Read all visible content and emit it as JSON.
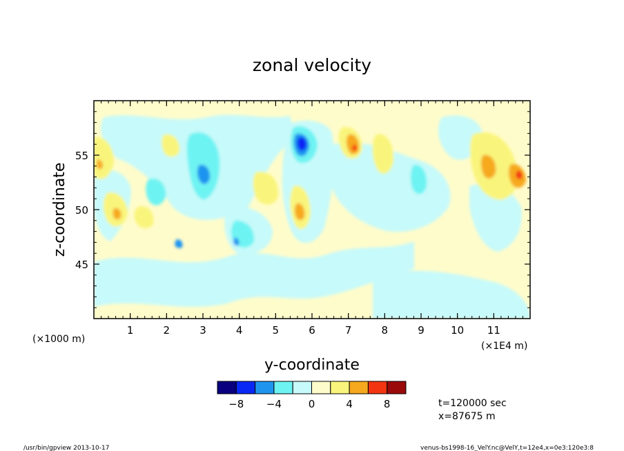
{
  "chart_data": {
    "type": "heatmap",
    "title": "zonal velocity",
    "xlabel": "y-coordinate",
    "ylabel": "z-coordinate",
    "x_range": [
      0,
      120000
    ],
    "y_range": [
      40000,
      60000
    ],
    "x_ticks": [
      {
        "value": 1,
        "label": "1"
      },
      {
        "value": 2,
        "label": "2"
      },
      {
        "value": 3,
        "label": "3"
      },
      {
        "value": 4,
        "label": "4"
      },
      {
        "value": 5,
        "label": "5"
      },
      {
        "value": 6,
        "label": "6"
      },
      {
        "value": 7,
        "label": "7"
      },
      {
        "value": 8,
        "label": "8"
      },
      {
        "value": 9,
        "label": "9"
      },
      {
        "value": 10,
        "label": "10"
      },
      {
        "value": 11,
        "label": "11"
      }
    ],
    "y_ticks": [
      {
        "value": 45,
        "label": "45"
      },
      {
        "value": 50,
        "label": "50"
      },
      {
        "value": 55,
        "label": "55"
      }
    ],
    "x_scale_note": "(×1E4 m)",
    "y_scale_note": "(×1000 m)",
    "colorbar": {
      "boundaries": [
        -10,
        -8,
        -6,
        -4,
        -2,
        0,
        2,
        4,
        6,
        8,
        10
      ],
      "colors": [
        "#08007e",
        "#0a28f5",
        "#1e94ef",
        "#6ef3f3",
        "#c7fafa",
        "#fffccb",
        "#f9f57c",
        "#f6a91e",
        "#f33512",
        "#9b0a0a"
      ],
      "tick_labels": [
        {
          "value": -8,
          "label": "−8"
        },
        {
          "value": -4,
          "label": "−4"
        },
        {
          "value": 0,
          "label": "0"
        },
        {
          "value": 4,
          "label": "4"
        },
        {
          "value": 8,
          "label": "8"
        }
      ]
    },
    "anomalies": [
      {
        "x": 5.7,
        "y": 55.8,
        "value": -9
      },
      {
        "x": 3.0,
        "y": 53.0,
        "value": -6
      },
      {
        "x": 7.1,
        "y": 55.5,
        "value": 7
      },
      {
        "x": 11.6,
        "y": 53.3,
        "value": 8
      },
      {
        "x": 10.9,
        "y": 54.0,
        "value": 6
      },
      {
        "x": 5.6,
        "y": 50.0,
        "value": 6
      },
      {
        "x": 0.7,
        "y": 49.8,
        "value": 5
      },
      {
        "x": 0.1,
        "y": 54.2,
        "value": 5
      },
      {
        "x": 0.6,
        "y": 54.8,
        "value": 5
      },
      {
        "x": 2.3,
        "y": 46.6,
        "value": -6
      },
      {
        "x": 3.9,
        "y": 47.0,
        "value": -5
      }
    ],
    "info": [
      "t=120000 sec",
      "x=87675 m"
    ]
  },
  "footer": {
    "left": "/usr/bin/gpview  2013-10-17",
    "right": "venus-bs1998-16_VelY.nc@VelY,t=12e4,x=0e3:120e3:8"
  }
}
